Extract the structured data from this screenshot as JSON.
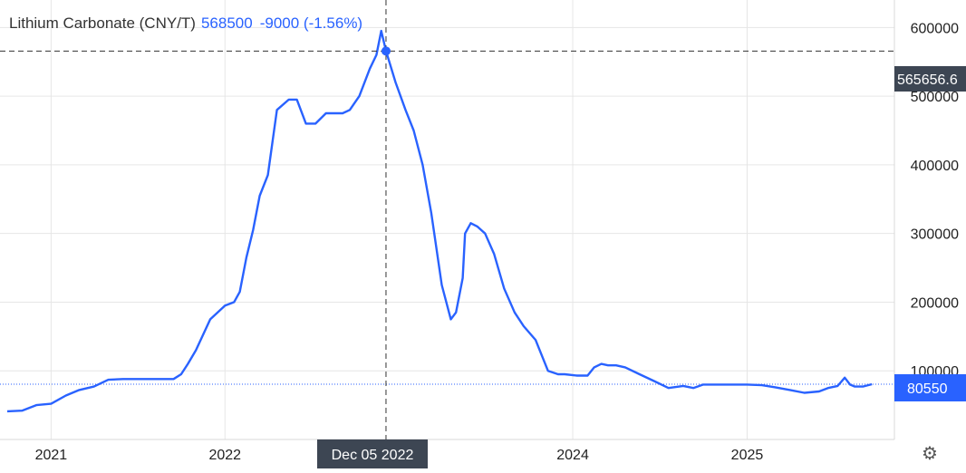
{
  "legend": {
    "name": "Lithium Carbonate (CNY/T)",
    "last": "568500",
    "change": "-9000 (-1.56%)"
  },
  "crosshair": {
    "date_label": "Dec 05 2022",
    "value_label": "565656.6",
    "date": "2022-12-05",
    "value": 565656.6
  },
  "last_price_label": "80550",
  "settings_icon": "gear-icon",
  "colors": {
    "line": "#2962ff",
    "grid": "#e6e6e6",
    "crosshair": "#333333",
    "crosshair_label_bg": "#3d4653",
    "last_label_bg": "#2962ff"
  },
  "chart_data": {
    "type": "line",
    "title": "Lithium Carbonate (CNY/T)",
    "xlabel": "",
    "ylabel": "",
    "grid": true,
    "legend_placement": "top-left",
    "ylim": [
      0,
      640000
    ],
    "xlim": [
      "2020-10-01",
      "2025-10-01"
    ],
    "x_ticks": [
      {
        "label": "2021",
        "date": "2021-01-01"
      },
      {
        "label": "2022",
        "date": "2022-01-01"
      },
      {
        "label": "2024",
        "date": "2024-01-01"
      },
      {
        "label": "2025",
        "date": "2025-01-01"
      }
    ],
    "y_ticks": [
      100000,
      200000,
      300000,
      400000,
      500000,
      600000
    ],
    "series": [
      {
        "x": [
          "2020-10-01",
          "2020-11-01",
          "2020-12-01",
          "2021-01-01",
          "2021-02-01",
          "2021-03-01",
          "2021-04-01",
          "2021-05-01",
          "2021-06-01",
          "2021-07-01",
          "2021-08-01",
          "2021-09-01",
          "2021-09-15",
          "2021-10-01",
          "2021-10-15",
          "2021-11-01",
          "2021-12-01",
          "2022-01-01",
          "2022-01-20",
          "2022-02-01",
          "2022-02-15",
          "2022-03-01",
          "2022-03-15",
          "2022-04-01",
          "2022-04-20",
          "2022-05-15",
          "2022-06-01",
          "2022-06-20",
          "2022-07-10",
          "2022-08-01",
          "2022-08-20",
          "2022-09-05",
          "2022-09-20",
          "2022-10-10",
          "2022-11-01",
          "2022-11-15",
          "2022-11-25",
          "2022-12-05",
          "2022-12-25",
          "2023-01-15",
          "2023-02-01",
          "2023-02-20",
          "2023-03-10",
          "2023-04-01",
          "2023-04-20",
          "2023-05-01",
          "2023-05-15",
          "2023-05-20",
          "2023-06-01",
          "2023-06-15",
          "2023-07-01",
          "2023-07-20",
          "2023-08-10",
          "2023-09-01",
          "2023-09-20",
          "2023-10-15",
          "2023-11-10",
          "2023-12-01",
          "2023-12-15",
          "2024-01-10",
          "2024-02-01",
          "2024-02-15",
          "2024-03-01",
          "2024-03-15",
          "2024-04-01",
          "2024-04-20",
          "2024-05-20",
          "2024-06-20",
          "2024-07-20",
          "2024-08-20",
          "2024-09-10",
          "2024-10-01",
          "2024-11-01",
          "2024-12-01",
          "2025-01-01",
          "2025-02-01",
          "2025-03-01",
          "2025-04-01",
          "2025-05-01",
          "2025-06-01",
          "2025-06-20",
          "2025-07-10",
          "2025-07-25",
          "2025-08-05",
          "2025-08-15",
          "2025-09-01",
          "2025-09-20"
        ],
        "y": [
          41000,
          42000,
          50000,
          52000,
          64000,
          72000,
          77000,
          87000,
          88000,
          88000,
          88000,
          88000,
          88000,
          95000,
          110000,
          130000,
          175000,
          195000,
          200000,
          215000,
          265000,
          305000,
          355000,
          385000,
          480000,
          495000,
          495000,
          460000,
          460000,
          475000,
          475000,
          475000,
          480000,
          500000,
          540000,
          560000,
          595000,
          565656.6,
          520000,
          480000,
          450000,
          400000,
          330000,
          225000,
          175000,
          185000,
          235000,
          300000,
          315000,
          310000,
          300000,
          270000,
          220000,
          185000,
          165000,
          145000,
          100000,
          95000,
          95000,
          93000,
          93000,
          105000,
          110000,
          108000,
          108000,
          105000,
          95000,
          85000,
          75000,
          78000,
          75000,
          80000,
          80000,
          80000,
          80000,
          79000,
          76000,
          72000,
          68000,
          70000,
          75000,
          78000,
          90000,
          80000,
          77000,
          77000,
          80550
        ]
      }
    ]
  }
}
